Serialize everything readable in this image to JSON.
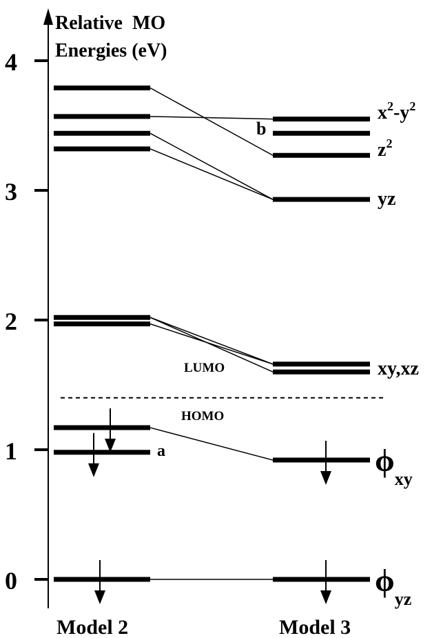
{
  "title": {
    "line1": "Relative  MO",
    "line2": "Energies (eV)"
  },
  "y_ticks": [
    "0",
    "1",
    "2",
    "3",
    "4"
  ],
  "columns": {
    "model2": "Model 2",
    "model3": "Model 3"
  },
  "gap_labels": {
    "lumo": "LUMO",
    "homo": "HOMO"
  },
  "marks": {
    "a": "a",
    "b": "b"
  },
  "levels_model2": [
    {
      "id": "m2-l1",
      "energy": 3.79
    },
    {
      "id": "m2-l2",
      "energy": 3.57
    },
    {
      "id": "m2-l3",
      "energy": 3.44
    },
    {
      "id": "m2-l4",
      "energy": 3.32
    },
    {
      "id": "m2-l5",
      "energy": 2.02
    },
    {
      "id": "m2-l6",
      "energy": 1.97
    },
    {
      "id": "m2-homo",
      "energy": 1.17,
      "electron": true
    },
    {
      "id": "m2-a",
      "energy": 0.98,
      "electron": true
    },
    {
      "id": "m2-base",
      "energy": 0.0,
      "electron": true
    }
  ],
  "levels_model3": [
    {
      "id": "m3-x2y2",
      "energy": 3.55
    },
    {
      "id": "m3-b",
      "energy": 3.44
    },
    {
      "id": "m3-z2",
      "energy": 3.27
    },
    {
      "id": "m3-yz",
      "energy": 2.93
    },
    {
      "id": "m3-xy-upper",
      "energy": 1.66
    },
    {
      "id": "m3-xz-lower",
      "energy": 1.6
    },
    {
      "id": "m3-phixy",
      "energy": 0.92,
      "electron": true
    },
    {
      "id": "m3-phiyz",
      "energy": 0.0,
      "electron": true
    }
  ],
  "labels_model3": {
    "x2y2": {
      "x": "x",
      "sup1": "2",
      "mid": "-y",
      "sup2": "2"
    },
    "z2": {
      "base": "z",
      "sup": "2"
    },
    "yz": "yz",
    "xyxz": "xy,xz",
    "phi_xy": {
      "phi": "ϕ",
      "sub": "xy"
    },
    "phi_yz": {
      "phi": "ϕ",
      "sub": "yz"
    }
  },
  "correlations": [
    [
      "m2-l1",
      "m3-z2"
    ],
    [
      "m2-l2",
      "m3-x2y2"
    ],
    [
      "m2-l3",
      "m3-yz"
    ],
    [
      "m2-l4",
      "m3-yz"
    ],
    [
      "m2-l5",
      "m3-xy-upper"
    ],
    [
      "m2-l5",
      "m3-xz-lower"
    ],
    [
      "m2-l6",
      "m3-xy-upper"
    ],
    [
      "m2-homo",
      "m3-phixy"
    ],
    [
      "m2-base",
      "m3-phiyz"
    ]
  ],
  "gap_energy": 1.4
}
